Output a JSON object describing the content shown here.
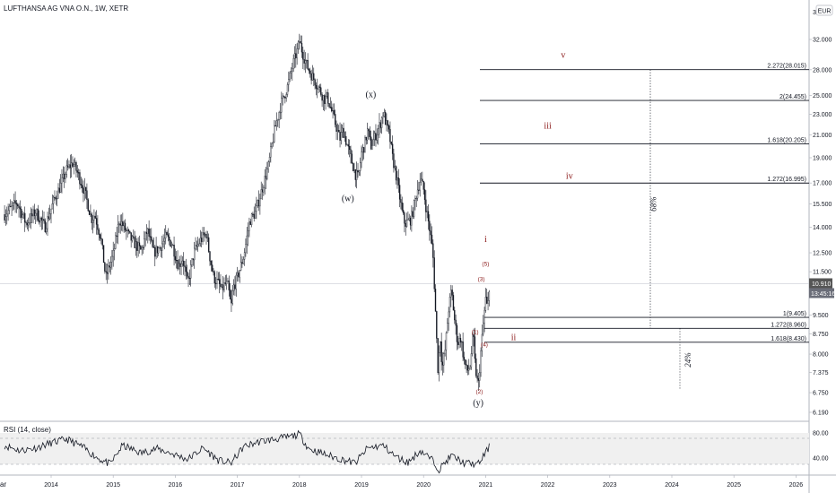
{
  "header": {
    "title": "LUFTHANSA AG VNA O.N., 1W, XETR",
    "currency_badge": "EUR",
    "top_axis_value": "3"
  },
  "price_badges": {
    "last_price": "10.910",
    "countdown": "13:45:16"
  },
  "rsi_panel": {
    "label": "RSI (14, close)",
    "ticks": [
      "80.00",
      "40.00"
    ]
  },
  "axis": {
    "left_edge_label": "ar"
  },
  "colors": {
    "accent_red": "#8b1a1a",
    "rsi_band": "#f0f0f0",
    "badge_dark": "#555555"
  },
  "chart_data": {
    "type": "candlestick",
    "symbol": "LUFTHANSA AG VNA O.N.",
    "interval": "1W",
    "exchange": "XETR",
    "y_scale": "log",
    "ylim": [
      5.8,
      38
    ],
    "y_ticks": [
      "32.000",
      "28.000",
      "25.000",
      "23.000",
      "21.000",
      "19.000",
      "17.000",
      "15.500",
      "14.000",
      "12.500",
      "11.500",
      "9.500",
      "8.750",
      "8.000",
      "7.375",
      "6.750",
      "6.190"
    ],
    "x_ticks": [
      "2014",
      "2015",
      "2016",
      "2017",
      "2018",
      "2019",
      "2020",
      "2021",
      "2022",
      "2023",
      "2024",
      "2025",
      "2026"
    ],
    "price_path": [
      [
        2013.25,
        14.8
      ],
      [
        2013.45,
        15.6
      ],
      [
        2013.6,
        14.2
      ],
      [
        2013.75,
        15.0
      ],
      [
        2013.9,
        14.0
      ],
      [
        2014.05,
        15.8
      ],
      [
        2014.15,
        16.8
      ],
      [
        2014.25,
        18.0
      ],
      [
        2014.35,
        18.6
      ],
      [
        2014.45,
        17.5
      ],
      [
        2014.55,
        16.2
      ],
      [
        2014.65,
        14.5
      ],
      [
        2014.7,
        14.8
      ],
      [
        2014.8,
        13.4
      ],
      [
        2014.88,
        11.2
      ],
      [
        2014.92,
        11.6
      ],
      [
        2015.0,
        12.4
      ],
      [
        2015.1,
        14.5
      ],
      [
        2015.2,
        13.8
      ],
      [
        2015.3,
        13.2
      ],
      [
        2015.45,
        12.6
      ],
      [
        2015.55,
        13.8
      ],
      [
        2015.65,
        12.5
      ],
      [
        2015.75,
        12.8
      ],
      [
        2015.85,
        13.4
      ],
      [
        2015.95,
        13.0
      ],
      [
        2016.05,
        11.8
      ],
      [
        2016.12,
        12.2
      ],
      [
        2016.2,
        10.9
      ],
      [
        2016.3,
        12.5
      ],
      [
        2016.4,
        13.2
      ],
      [
        2016.5,
        13.6
      ],
      [
        2016.55,
        12.4
      ],
      [
        2016.62,
        11.2
      ],
      [
        2016.7,
        10.9
      ],
      [
        2016.75,
        10.6
      ],
      [
        2016.8,
        10.9
      ],
      [
        2016.85,
        10.8
      ],
      [
        2016.9,
        9.8
      ],
      [
        2016.93,
        10.7
      ],
      [
        2017.0,
        11.2
      ],
      [
        2017.1,
        12.3
      ],
      [
        2017.2,
        14.4
      ],
      [
        2017.3,
        15.0
      ],
      [
        2017.4,
        16.6
      ],
      [
        2017.5,
        18.3
      ],
      [
        2017.6,
        21.5
      ],
      [
        2017.7,
        24.0
      ],
      [
        2017.8,
        25.8
      ],
      [
        2017.9,
        28.8
      ],
      [
        2017.97,
        30.6
      ],
      [
        2018.0,
        31.8
      ],
      [
        2018.05,
        30.2
      ],
      [
        2018.12,
        28.5
      ],
      [
        2018.2,
        27.3
      ],
      [
        2018.3,
        26.0
      ],
      [
        2018.4,
        24.6
      ],
      [
        2018.45,
        24.8
      ],
      [
        2018.55,
        22.7
      ],
      [
        2018.65,
        20.6
      ],
      [
        2018.7,
        21.5
      ],
      [
        2018.8,
        19.5
      ],
      [
        2018.9,
        17.7
      ],
      [
        2018.95,
        17.4
      ],
      [
        2019.0,
        19.4
      ],
      [
        2019.05,
        20.1
      ],
      [
        2019.1,
        21.5
      ],
      [
        2019.15,
        20.0
      ],
      [
        2019.2,
        20.6
      ],
      [
        2019.3,
        22.0
      ],
      [
        2019.35,
        23.2
      ],
      [
        2019.4,
        22.0
      ],
      [
        2019.45,
        21.0
      ],
      [
        2019.5,
        19.0
      ],
      [
        2019.55,
        17.8
      ],
      [
        2019.6,
        16.4
      ],
      [
        2019.65,
        15.0
      ],
      [
        2019.7,
        14.2
      ],
      [
        2019.8,
        14.5
      ],
      [
        2019.9,
        16.5
      ],
      [
        2019.95,
        17.3
      ],
      [
        2020.0,
        16.5
      ],
      [
        2020.05,
        15.0
      ],
      [
        2020.1,
        13.8
      ],
      [
        2020.15,
        12.5
      ],
      [
        2020.2,
        9.2
      ],
      [
        2020.23,
        7.5
      ],
      [
        2020.27,
        8.6
      ],
      [
        2020.3,
        7.5
      ],
      [
        2020.35,
        8.2
      ],
      [
        2020.4,
        9.7
      ],
      [
        2020.45,
        10.6
      ],
      [
        2020.5,
        9.3
      ],
      [
        2020.55,
        8.4
      ],
      [
        2020.6,
        8.6
      ],
      [
        2020.65,
        7.8
      ],
      [
        2020.7,
        7.4
      ],
      [
        2020.75,
        7.6
      ],
      [
        2020.8,
        8.8
      ],
      [
        2020.83,
        7.6
      ],
      [
        2020.88,
        6.9
      ],
      [
        2020.92,
        8.0
      ],
      [
        2020.96,
        9.1
      ],
      [
        2021.0,
        10.2
      ],
      [
        2021.03,
        9.7
      ],
      [
        2021.06,
        10.9
      ]
    ],
    "rsi_path": [
      [
        2013.25,
        60
      ],
      [
        2013.5,
        52
      ],
      [
        2013.75,
        56
      ],
      [
        2014.0,
        64
      ],
      [
        2014.25,
        70
      ],
      [
        2014.5,
        58
      ],
      [
        2014.75,
        40
      ],
      [
        2014.95,
        30
      ],
      [
        2015.15,
        60
      ],
      [
        2015.45,
        48
      ],
      [
        2015.7,
        55
      ],
      [
        2015.95,
        47
      ],
      [
        2016.2,
        38
      ],
      [
        2016.45,
        56
      ],
      [
        2016.7,
        36
      ],
      [
        2016.9,
        32
      ],
      [
        2017.1,
        58
      ],
      [
        2017.35,
        66
      ],
      [
        2017.6,
        70
      ],
      [
        2017.85,
        74
      ],
      [
        2018.0,
        78
      ],
      [
        2018.15,
        55
      ],
      [
        2018.35,
        48
      ],
      [
        2018.6,
        40
      ],
      [
        2018.9,
        32
      ],
      [
        2019.1,
        56
      ],
      [
        2019.35,
        60
      ],
      [
        2019.55,
        42
      ],
      [
        2019.75,
        33
      ],
      [
        2019.95,
        52
      ],
      [
        2020.15,
        36
      ],
      [
        2020.25,
        22
      ],
      [
        2020.45,
        44
      ],
      [
        2020.65,
        32
      ],
      [
        2020.88,
        30
      ],
      [
        2021.06,
        58
      ]
    ],
    "fib_levels": [
      {
        "label": "2.272(28.015)",
        "price": 28.015
      },
      {
        "label": "2(24.455)",
        "price": 24.455
      },
      {
        "label": "1.618(20.205)",
        "price": 20.205
      },
      {
        "label": "1.272(16.995)",
        "price": 16.995
      },
      {
        "label": "1(9.405)",
        "price": 9.405
      },
      {
        "label": "1.272(8.960)",
        "price": 8.96
      },
      {
        "label": "1.618(8.430)",
        "price": 8.43
      }
    ],
    "wave_labels_primary": [
      {
        "text": "(x)",
        "t": 2019.15,
        "price": 24.8
      },
      {
        "text": "(w)",
        "t": 2018.78,
        "price": 15.7
      },
      {
        "text": "(y)",
        "t": 2020.88,
        "price": 6.38
      }
    ],
    "wave_labels_minor": [
      {
        "text": "v",
        "t": 2022.25,
        "price": 29.5
      },
      {
        "text": "iii",
        "t": 2022.0,
        "price": 21.6
      },
      {
        "text": "iv",
        "t": 2022.35,
        "price": 17.3
      },
      {
        "text": "i",
        "t": 2021.0,
        "price": 13.1
      },
      {
        "text": "ii",
        "t": 2021.45,
        "price": 8.5
      }
    ],
    "wave_labels_sub": [
      {
        "text": "(5)",
        "t": 2021.0,
        "price": 11.8
      },
      {
        "text": "(3)",
        "t": 2020.93,
        "price": 11.05
      },
      {
        "text": "(1)",
        "t": 2020.83,
        "price": 8.75
      },
      {
        "text": "(4)",
        "t": 2020.98,
        "price": 8.27
      },
      {
        "text": "(2)",
        "t": 2020.9,
        "price": 6.72
      }
    ],
    "percent_labels": [
      {
        "text": "68%",
        "t": 2023.75,
        "price": 15.5
      },
      {
        "text": "24%",
        "t": 2024.3,
        "price": 7.8
      }
    ],
    "last_price": 10.91
  }
}
